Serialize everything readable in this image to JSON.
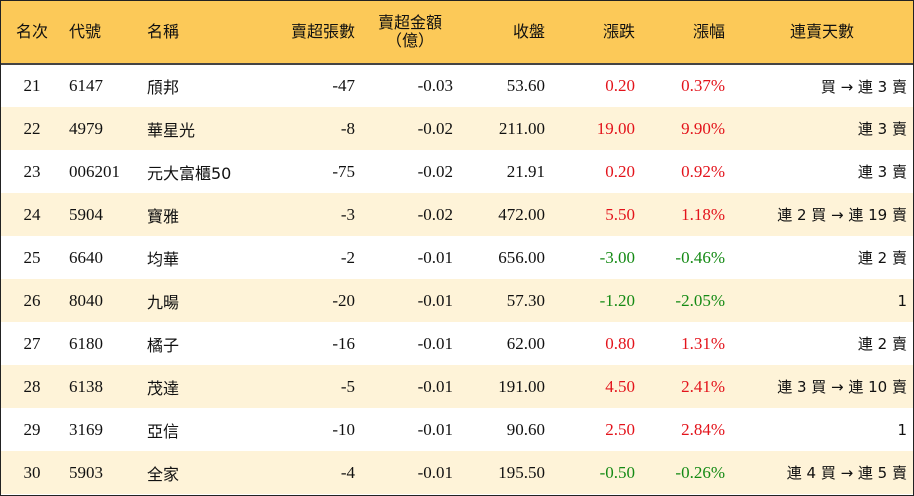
{
  "header": {
    "rank": "名次",
    "code": "代號",
    "name": "名稱",
    "net_sell_lots": "賣超張數",
    "net_sell_amount": "賣超金額",
    "net_sell_amount_unit": "（億）",
    "close": "收盤",
    "change": "漲跌",
    "pct": "漲幅",
    "streak": "連賣天數"
  },
  "colors": {
    "header_bg": "#fcc958",
    "stripe": "#fef3d8",
    "up": "#e3131b",
    "down": "#148a14"
  },
  "rows": [
    {
      "rank": "21",
      "code": "6147",
      "name": "頎邦",
      "lots": "-47",
      "amount": "-0.03",
      "close": "53.60",
      "change": "0.20",
      "pct": "0.37%",
      "dir": "up",
      "streak": "買 → 連 3 賣"
    },
    {
      "rank": "22",
      "code": "4979",
      "name": "華星光",
      "lots": "-8",
      "amount": "-0.02",
      "close": "211.00",
      "change": "19.00",
      "pct": "9.90%",
      "dir": "up",
      "streak": "連 3 賣"
    },
    {
      "rank": "23",
      "code": "006201",
      "name": "元大富櫃50",
      "lots": "-75",
      "amount": "-0.02",
      "close": "21.91",
      "change": "0.20",
      "pct": "0.92%",
      "dir": "up",
      "streak": "連 3 賣"
    },
    {
      "rank": "24",
      "code": "5904",
      "name": "寶雅",
      "lots": "-3",
      "amount": "-0.02",
      "close": "472.00",
      "change": "5.50",
      "pct": "1.18%",
      "dir": "up",
      "streak": "連 2 買 → 連 19 賣"
    },
    {
      "rank": "25",
      "code": "6640",
      "name": "均華",
      "lots": "-2",
      "amount": "-0.01",
      "close": "656.00",
      "change": "-3.00",
      "pct": "-0.46%",
      "dir": "down",
      "streak": "連 2 賣"
    },
    {
      "rank": "26",
      "code": "8040",
      "name": "九暘",
      "lots": "-20",
      "amount": "-0.01",
      "close": "57.30",
      "change": "-1.20",
      "pct": "-2.05%",
      "dir": "down",
      "streak": "1"
    },
    {
      "rank": "27",
      "code": "6180",
      "name": "橘子",
      "lots": "-16",
      "amount": "-0.01",
      "close": "62.00",
      "change": "0.80",
      "pct": "1.31%",
      "dir": "up",
      "streak": "連 2 賣"
    },
    {
      "rank": "28",
      "code": "6138",
      "name": "茂達",
      "lots": "-5",
      "amount": "-0.01",
      "close": "191.00",
      "change": "4.50",
      "pct": "2.41%",
      "dir": "up",
      "streak": "連 3 買 → 連 10 賣"
    },
    {
      "rank": "29",
      "code": "3169",
      "name": "亞信",
      "lots": "-10",
      "amount": "-0.01",
      "close": "90.60",
      "change": "2.50",
      "pct": "2.84%",
      "dir": "up",
      "streak": "1"
    },
    {
      "rank": "30",
      "code": "5903",
      "name": "全家",
      "lots": "-4",
      "amount": "-0.01",
      "close": "195.50",
      "change": "-0.50",
      "pct": "-0.26%",
      "dir": "down",
      "streak": "連 4 買 → 連 5 賣"
    }
  ]
}
